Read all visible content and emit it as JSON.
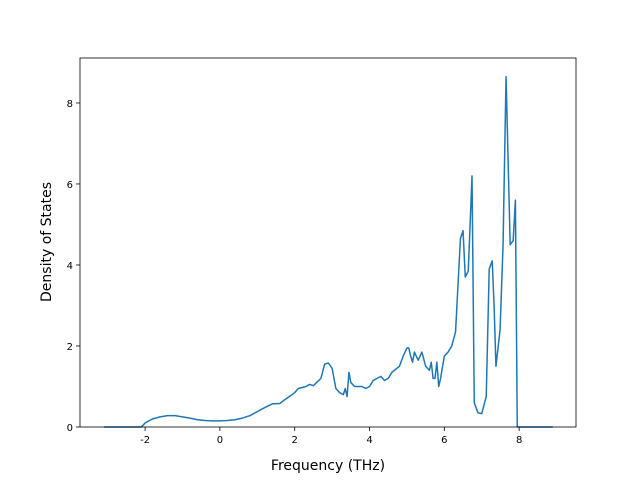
{
  "chart_data": {
    "type": "line",
    "x_label": "Frequency (THz)",
    "y_label": "Density of States",
    "color": "#1f77b4",
    "x": [
      -3.1,
      -2.6,
      -2.1,
      -2.0,
      -1.8,
      -1.6,
      -1.4,
      -1.2,
      -1.0,
      -0.8,
      -0.6,
      -0.4,
      -0.2,
      0,
      0.2,
      0.4,
      0.6,
      0.8,
      1.0,
      1.2,
      1.4,
      1.6,
      1.7,
      1.9,
      2.0,
      2.1,
      2.3,
      2.4,
      2.5,
      2.7,
      2.8,
      2.9,
      3.0,
      3.1,
      3.2,
      3.3,
      3.35,
      3.4,
      3.45,
      3.5,
      3.6,
      3.8,
      3.9,
      4.0,
      4.1,
      4.2,
      4.3,
      4.4,
      4.5,
      4.6,
      4.8,
      4.9,
      5.0,
      5.05,
      5.1,
      5.15,
      5.2,
      5.3,
      5.4,
      5.5,
      5.6,
      5.65,
      5.7,
      5.75,
      5.8,
      5.85,
      5.9,
      6.0,
      6.1,
      6.2,
      6.3,
      6.43,
      6.5,
      6.56,
      6.64,
      6.74,
      6.8,
      6.9,
      7.0,
      7.12,
      7.2,
      7.28,
      7.33,
      7.38,
      7.49,
      7.57,
      7.65,
      7.76,
      7.84,
      7.9,
      7.95,
      8.4,
      8.9
    ],
    "values": [
      0,
      0,
      0,
      0.1,
      0.2,
      0.25,
      0.28,
      0.28,
      0.25,
      0.22,
      0.18,
      0.16,
      0.15,
      0.15,
      0.16,
      0.18,
      0.22,
      0.28,
      0.38,
      0.48,
      0.57,
      0.58,
      0.65,
      0.78,
      0.85,
      0.95,
      1.0,
      1.05,
      1.02,
      1.2,
      1.55,
      1.58,
      1.45,
      0.95,
      0.85,
      0.8,
      0.95,
      0.75,
      1.35,
      1.1,
      1.0,
      1.0,
      0.95,
      1.0,
      1.15,
      1.2,
      1.25,
      1.15,
      1.2,
      1.35,
      1.5,
      1.75,
      1.95,
      1.95,
      1.75,
      1.6,
      1.85,
      1.65,
      1.85,
      1.5,
      1.4,
      1.6,
      1.2,
      1.2,
      1.6,
      1.0,
      1.2,
      1.75,
      1.85,
      2.0,
      2.35,
      4.65,
      4.85,
      3.7,
      3.85,
      6.2,
      0.6,
      0.35,
      0.33,
      0.75,
      3.9,
      4.1,
      3.0,
      1.5,
      2.4,
      4.5,
      8.65,
      4.5,
      4.6,
      5.6,
      0,
      0,
      0
    ],
    "xlim": [
      -3.74,
      9.52
    ],
    "ylim": [
      0,
      9.11
    ],
    "xticks": [
      -2,
      0,
      2,
      4,
      6,
      8
    ],
    "yticks": [
      0,
      2,
      4,
      6,
      8
    ]
  }
}
